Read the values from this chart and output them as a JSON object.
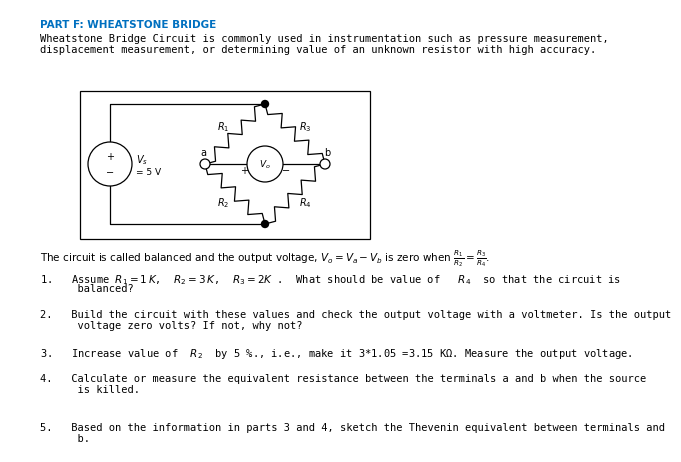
{
  "title": "PART F: WHEATSTONE BRIDGE",
  "intro_line1": "Wheatstone Bridge Circuit is commonly used in instrumentation such as pressure measurement,",
  "intro_line2": "displacement measurement, or determining value of an unknown resistor with high accuracy.",
  "balance_text": "The circuit is called balanced and the output voltage, $V_o = V_a - V_b$ is zero when $\\frac{R_1}{R_2} = \\frac{R_3}{R_4}$.",
  "q1_line1": "1.   Assume $R_1 = 1\\,K$,  $R_2 = 3\\,K$,  $R_3 = 2K$ .  What should be value of   $R_4$  so that the circuit is",
  "q1_line2": "      balanced?",
  "q2_line1": "2.   Build the circuit with these values and check the output voltage with a voltmeter. Is the output",
  "q2_line2": "      voltage zero volts? If not, why not?",
  "q3": "3.   Increase value of  $R_2$  by 5 %., i.e., make it 3*1.05 =3.15 KΩ. Measure the output voltage.",
  "q4_line1": "4.   Calculate or measure the equivalent resistance between the terminals a and b when the source",
  "q4_line2": "      is killed.",
  "q5_line1": "5.   Based on the information in parts 3 and 4, sketch the Thevenin equivalent between terminals and",
  "q5_line2": "      b.",
  "bg_color": "#ffffff",
  "title_color": "#0070c0",
  "text_color": "#000000"
}
